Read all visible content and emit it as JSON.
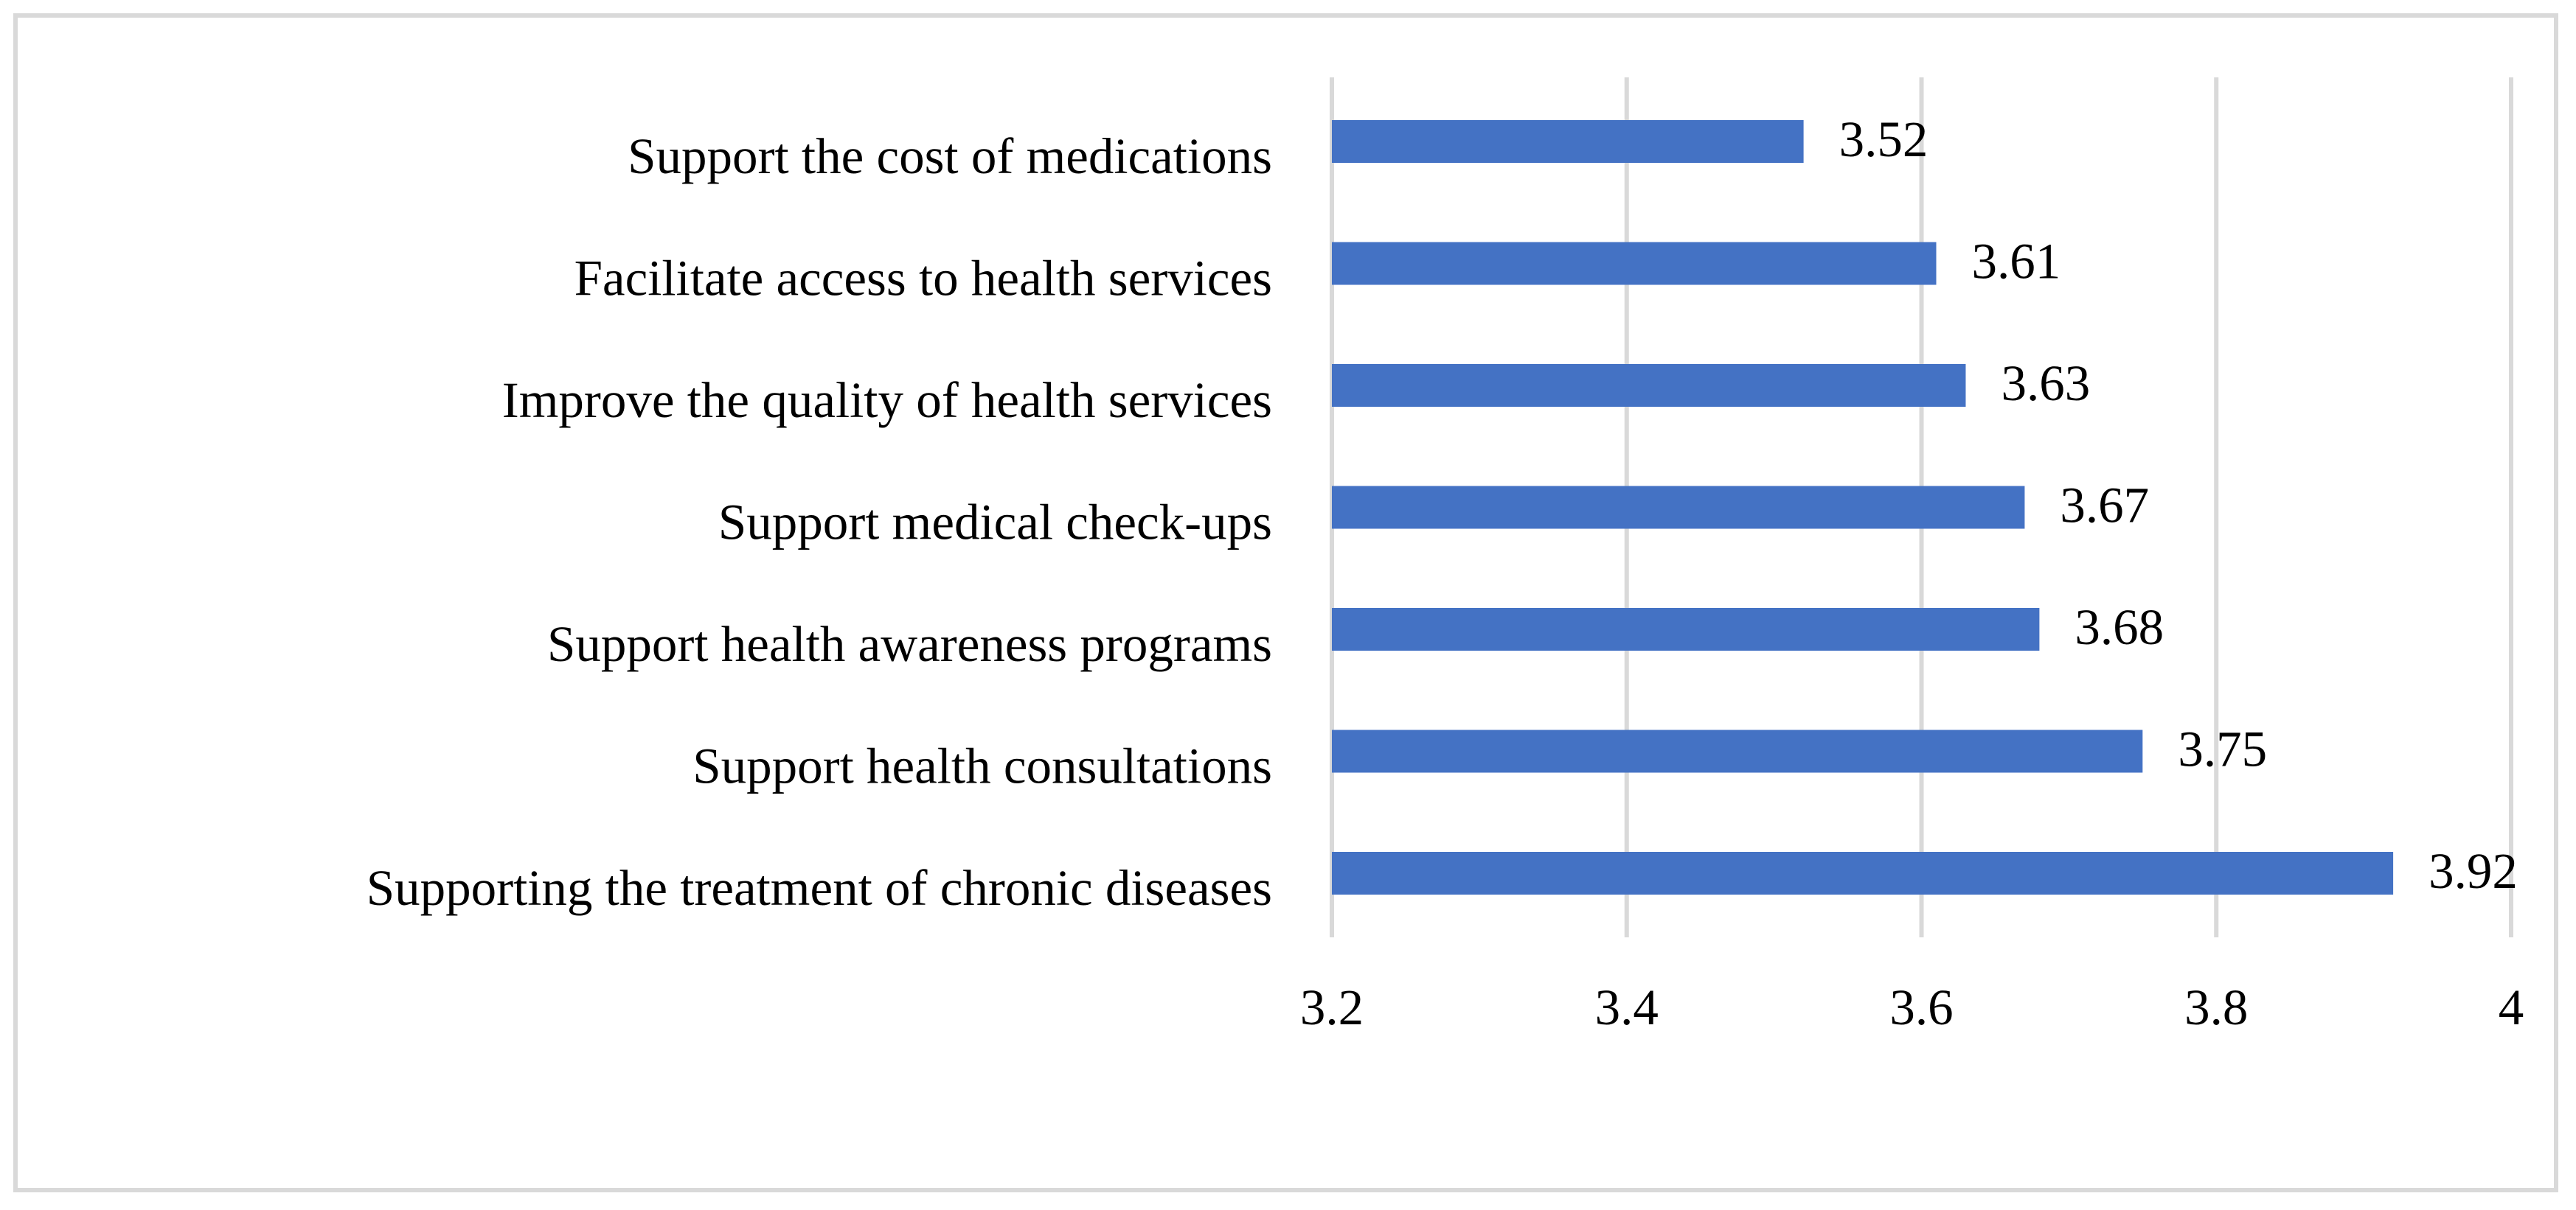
{
  "chart_data": {
    "type": "bar",
    "orientation": "horizontal",
    "title": "",
    "xlabel": "",
    "ylabel": "",
    "categories": [
      "Support the cost of medications",
      "Facilitate access to health services",
      "Improve the quality of health services",
      "Support medical check-ups",
      "Support health awareness programs",
      "Support health consultations",
      "Supporting the treatment of chronic diseases"
    ],
    "values": [
      3.52,
      3.61,
      3.63,
      3.67,
      3.68,
      3.75,
      3.92
    ],
    "data_labels": [
      "3.52",
      "3.61",
      "3.63",
      "3.67",
      "3.68",
      "3.75",
      "3.92"
    ],
    "xlim": [
      3.2,
      4
    ],
    "x_ticks": [
      3.2,
      3.4,
      3.6,
      3.8,
      4
    ],
    "x_tick_labels": [
      "3.2",
      "3.4",
      "3.6",
      "3.8",
      "4"
    ],
    "grid": "vertical",
    "legend": "none",
    "bar_color": "#4472c4",
    "grid_color": "#d9d9d9"
  }
}
